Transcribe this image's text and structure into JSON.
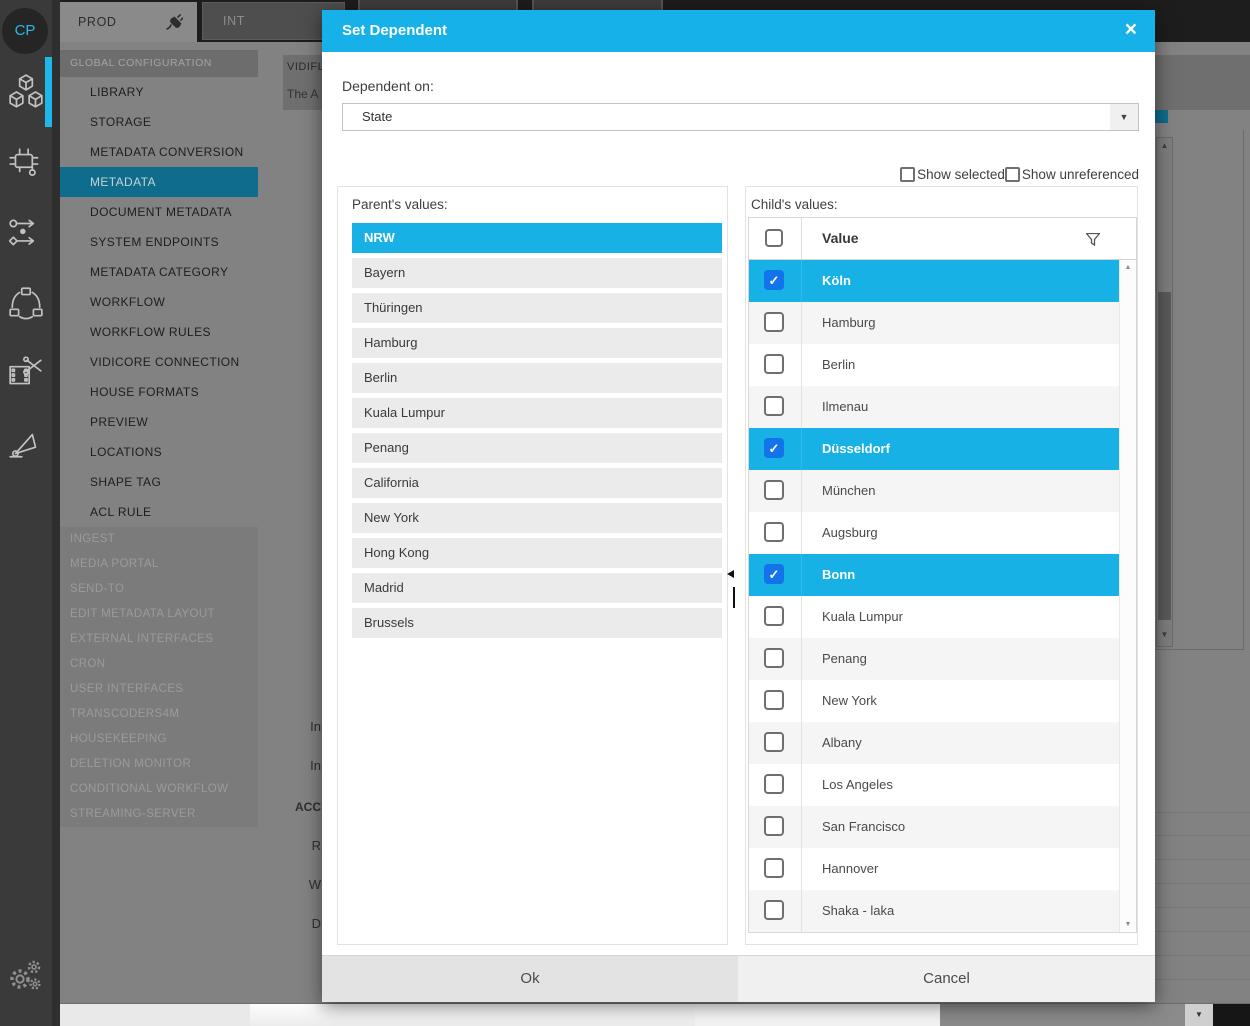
{
  "sidebar": {
    "logo": "CP",
    "icons": [
      "assets-cubes-icon",
      "automation-icon",
      "workflow-arrows-icon",
      "cluster-icon",
      "media-scissors-icon",
      "vector-flag-icon",
      "settings-gears-icon"
    ]
  },
  "tabs": [
    {
      "label": "PROD",
      "active": true,
      "icon": "plug-icon"
    },
    {
      "label": "INT",
      "active": false
    }
  ],
  "menu": {
    "section_header": "GLOBAL CONFIGURATION",
    "primary_items": [
      {
        "label": "LIBRARY",
        "selected": false
      },
      {
        "label": "STORAGE",
        "selected": false
      },
      {
        "label": "METADATA CONVERSION",
        "selected": false
      },
      {
        "label": "METADATA",
        "selected": true
      },
      {
        "label": "DOCUMENT METADATA",
        "selected": false
      },
      {
        "label": "SYSTEM ENDPOINTS",
        "selected": false
      },
      {
        "label": "METADATA CATEGORY",
        "selected": false
      },
      {
        "label": "WORKFLOW",
        "selected": false
      },
      {
        "label": "WORKFLOW RULES",
        "selected": false
      },
      {
        "label": "VIDICORE CONNECTION",
        "selected": false
      },
      {
        "label": "HOUSE FORMATS",
        "selected": false
      },
      {
        "label": "PREVIEW",
        "selected": false
      },
      {
        "label": "LOCATIONS",
        "selected": false
      },
      {
        "label": "SHAPE TAG",
        "selected": false
      },
      {
        "label": "ACL RULE",
        "selected": false
      }
    ],
    "secondary_items": [
      {
        "label": "INGEST"
      },
      {
        "label": "MEDIA PORTAL"
      },
      {
        "label": "SEND-TO"
      },
      {
        "label": "EDIT METADATA LAYOUT"
      },
      {
        "label": "EXTERNAL INTERFACES"
      },
      {
        "label": "CRON"
      },
      {
        "label": "USER INTERFACES"
      },
      {
        "label": "TRANSCODERS4M"
      },
      {
        "label": "HOUSEKEEPING"
      },
      {
        "label": "DELETION MONITOR"
      },
      {
        "label": "CONDITIONAL WORKFLOW"
      },
      {
        "label": "STREAMING-SERVER"
      }
    ]
  },
  "background": {
    "panel_title": "VIDIFL",
    "panel_subtitle": "The A",
    "fragments": [
      "In",
      "In",
      "ACC",
      "R",
      "W",
      "D"
    ]
  },
  "modal": {
    "title": "Set Dependent",
    "close_glyph": "×",
    "dependent_on_label": "Dependent on:",
    "dependent_on_value": "State",
    "show_selected_label": "Show selected",
    "show_unreferenced_label": "Show unreferenced",
    "parent": {
      "label": "Parent's values:",
      "values": [
        {
          "label": "NRW",
          "selected": true
        },
        {
          "label": "Bayern",
          "selected": false
        },
        {
          "label": "Thüringen",
          "selected": false
        },
        {
          "label": "Hamburg",
          "selected": false
        },
        {
          "label": "Berlin",
          "selected": false
        },
        {
          "label": "Kuala Lumpur",
          "selected": false
        },
        {
          "label": "Penang",
          "selected": false
        },
        {
          "label": "California",
          "selected": false
        },
        {
          "label": "New York",
          "selected": false
        },
        {
          "label": "Hong Kong",
          "selected": false
        },
        {
          "label": "Madrid",
          "selected": false
        },
        {
          "label": "Brussels",
          "selected": false
        }
      ]
    },
    "child": {
      "label": "Child's values:",
      "column_header": "Value",
      "header_checkbox_checked": false,
      "filter_icon": "filter-funnel-icon",
      "rows": [
        {
          "value": "Köln",
          "checked": true,
          "highlighted": true
        },
        {
          "value": "Hamburg",
          "checked": false,
          "highlighted": false
        },
        {
          "value": "Berlin",
          "checked": false,
          "highlighted": false
        },
        {
          "value": "Ilmenau",
          "checked": false,
          "highlighted": false
        },
        {
          "value": "Düsseldorf",
          "checked": true,
          "highlighted": true
        },
        {
          "value": "München",
          "checked": false,
          "highlighted": false
        },
        {
          "value": "Augsburg",
          "checked": false,
          "highlighted": false
        },
        {
          "value": "Bonn",
          "checked": true,
          "highlighted": true
        },
        {
          "value": "Kuala Lumpur",
          "checked": false,
          "highlighted": false
        },
        {
          "value": "Penang",
          "checked": false,
          "highlighted": false
        },
        {
          "value": "New York",
          "checked": false,
          "highlighted": false
        },
        {
          "value": "Albany",
          "checked": false,
          "highlighted": false
        },
        {
          "value": "Los Angeles",
          "checked": false,
          "highlighted": false
        },
        {
          "value": "San Francisco",
          "checked": false,
          "highlighted": false
        },
        {
          "value": "Hannover",
          "checked": false,
          "highlighted": false
        },
        {
          "value": "Shaka - laka",
          "checked": false,
          "highlighted": false
        }
      ]
    },
    "ok_label": "Ok",
    "cancel_label": "Cancel"
  },
  "colors": {
    "accent": "#16b1e8",
    "row_highlight": "#17b1e6",
    "checkbox_checked": "#1273eb",
    "menu_selected": "#0e6d8c",
    "sidebar_indicator": "#1fb6ea",
    "topbar": "#1d1d1d",
    "page_background": "#828282"
  }
}
